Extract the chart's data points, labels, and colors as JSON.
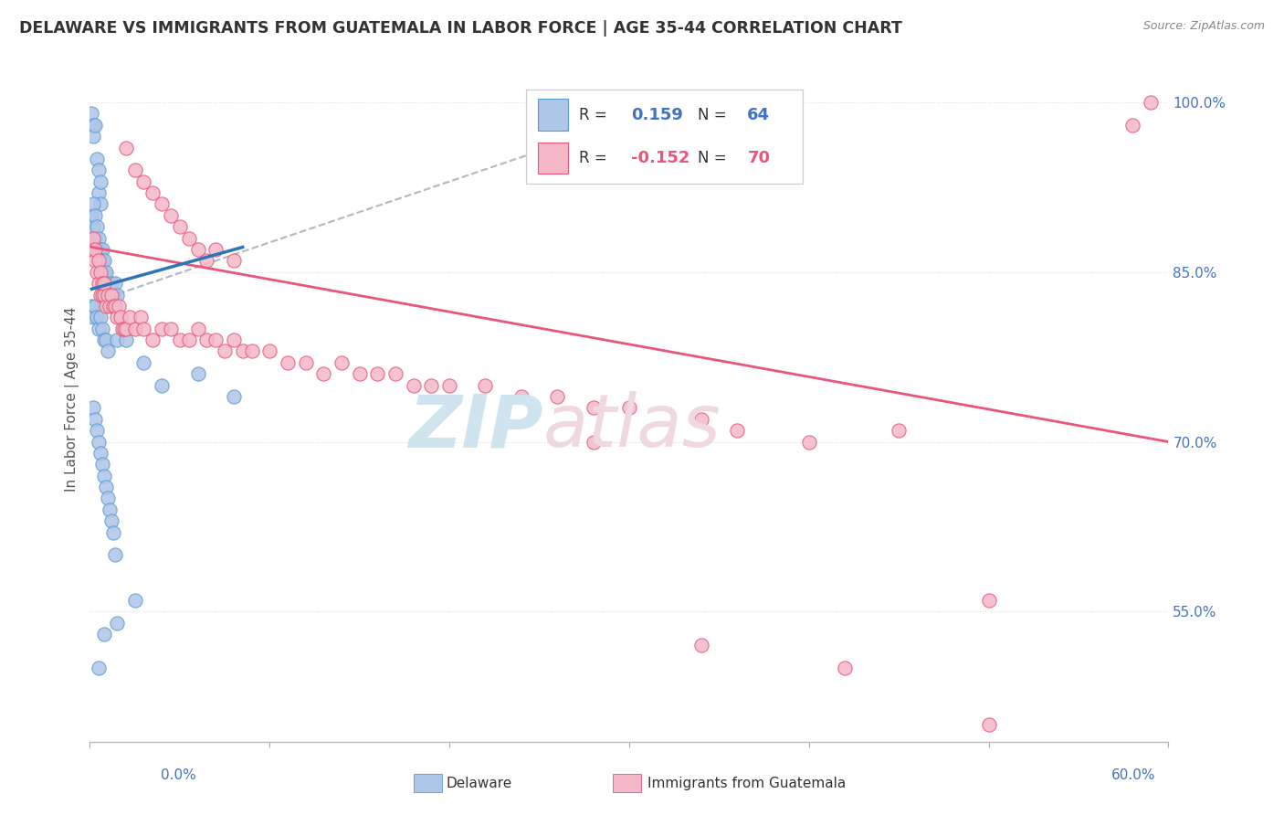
{
  "title": "DELAWARE VS IMMIGRANTS FROM GUATEMALA IN LABOR FORCE | AGE 35-44 CORRELATION CHART",
  "source": "Source: ZipAtlas.com",
  "ylabel": "In Labor Force | Age 35-44",
  "ylabel_ticks": [
    "100.0%",
    "85.0%",
    "70.0%",
    "55.0%"
  ],
  "ylabel_tick_vals": [
    1.0,
    0.85,
    0.7,
    0.55
  ],
  "xmin": 0.0,
  "xmax": 0.6,
  "ymin": 0.435,
  "ymax": 1.04,
  "R_delaware": 0.159,
  "N_delaware": 64,
  "R_guatemala": -0.152,
  "N_guatemala": 70,
  "color_delaware_fill": "#aec6e8",
  "color_delaware_edge": "#5b9bd5",
  "color_delaware_line": "#2e75b6",
  "color_guatemala_fill": "#f4b8c8",
  "color_guatemala_edge": "#e8567a",
  "color_guatemala_line": "#e8567a",
  "color_dashed": "#b0b8c0",
  "background_color": "#ffffff",
  "grid_color": "#d8dde0",
  "title_color": "#333333",
  "source_color": "#888888",
  "axis_color": "#4472c4",
  "legend_border": "#cccccc",
  "watermark_zip_color": "#d0e4f0",
  "watermark_atlas_color": "#f0d8e0"
}
